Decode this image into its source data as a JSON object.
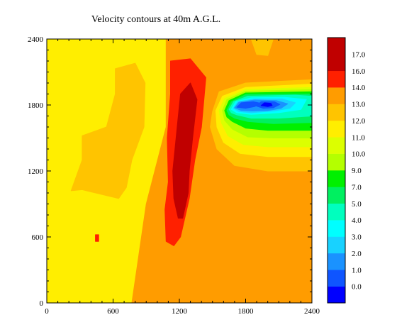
{
  "chart_data": {
    "type": "heatmap",
    "title": "Velocity contours at 40m A.G.L.",
    "xlabel": "",
    "ylabel": "",
    "xlim": [
      0,
      2400
    ],
    "ylim": [
      0,
      2400
    ],
    "x_ticks": [
      "0",
      "600",
      "1200",
      "1800",
      "2400"
    ],
    "y_ticks": [
      "0",
      "600",
      "1200",
      "1800",
      "2400"
    ],
    "colorbar": {
      "levels": [
        "0.0",
        "1.0",
        "2.0",
        "3.0",
        "4.0",
        "5.0",
        "7.0",
        "9.0",
        "10.0",
        "11.0",
        "12.0",
        "13.0",
        "14.0",
        "16.0",
        "17.0"
      ],
      "colors": [
        "#0000ff",
        "#0f55ff",
        "#1a92ff",
        "#18d2ff",
        "#00ffff",
        "#00ffbe",
        "#00f060",
        "#00f000",
        "#b4ff00",
        "#dcff00",
        "#ffee00",
        "#ffc400",
        "#ff9c00",
        "#ff2000",
        "#c00000",
        "#c00000"
      ]
    },
    "regions": [
      {
        "level": "12.0",
        "points": [
          [
            0,
            2400
          ],
          [
            1080,
            2400
          ],
          [
            1080,
            1600
          ],
          [
            900,
            900
          ],
          [
            770,
            0
          ],
          [
            0,
            0
          ]
        ]
      },
      {
        "level": "14.0",
        "points": [
          [
            1080,
            2400
          ],
          [
            2400,
            2400
          ],
          [
            2400,
            0
          ],
          [
            770,
            0
          ],
          [
            900,
            900
          ],
          [
            1080,
            1600
          ]
        ]
      },
      {
        "level": "13.0",
        "points": [
          [
            620,
            2130
          ],
          [
            800,
            2180
          ],
          [
            890,
            2000
          ],
          [
            880,
            1600
          ],
          [
            770,
            1300
          ],
          [
            720,
            1050
          ],
          [
            650,
            950
          ],
          [
            320,
            1030
          ],
          [
            220,
            1020
          ],
          [
            320,
            1300
          ],
          [
            320,
            1520
          ],
          [
            540,
            1600
          ],
          [
            620,
            1900
          ]
        ]
      },
      {
        "level": "13.0",
        "points": [
          [
            1850,
            2400
          ],
          [
            2050,
            2400
          ],
          [
            2000,
            2250
          ],
          [
            1900,
            2260
          ]
        ]
      },
      {
        "level": "16.0",
        "points": [
          [
            1120,
            2200
          ],
          [
            1300,
            2220
          ],
          [
            1440,
            2050
          ],
          [
            1400,
            1600
          ],
          [
            1340,
            1300
          ],
          [
            1290,
            950
          ],
          [
            1210,
            600
          ],
          [
            1150,
            520
          ],
          [
            1080,
            560
          ],
          [
            1070,
            850
          ],
          [
            1100,
            1100
          ],
          [
            1090,
            1500
          ],
          [
            1120,
            1900
          ]
        ]
      },
      {
        "level": "17.0",
        "points": [
          [
            1300,
            2000
          ],
          [
            1360,
            1850
          ],
          [
            1320,
            1500
          ],
          [
            1290,
            1200
          ],
          [
            1280,
            1000
          ],
          [
            1230,
            770
          ],
          [
            1190,
            770
          ],
          [
            1150,
            950
          ],
          [
            1140,
            1200
          ],
          [
            1180,
            1600
          ],
          [
            1210,
            1900
          ]
        ]
      },
      {
        "level": "16.0",
        "points": [
          [
            440,
            620
          ],
          [
            470,
            620
          ],
          [
            470,
            560
          ],
          [
            440,
            560
          ]
        ]
      },
      {
        "level": "13.0",
        "points": [
          [
            1500,
            1740
          ],
          [
            1560,
            1920
          ],
          [
            1800,
            2000
          ],
          [
            2400,
            2030
          ],
          [
            2400,
            1200
          ],
          [
            2000,
            1200
          ],
          [
            1700,
            1250
          ],
          [
            1540,
            1400
          ],
          [
            1480,
            1600
          ]
        ]
      },
      {
        "level": "12.0",
        "points": [
          [
            1530,
            1750
          ],
          [
            1590,
            1880
          ],
          [
            1800,
            1960
          ],
          [
            2400,
            1990
          ],
          [
            2400,
            1330
          ],
          [
            2000,
            1330
          ],
          [
            1750,
            1360
          ],
          [
            1600,
            1460
          ],
          [
            1540,
            1600
          ]
        ]
      },
      {
        "level": "11.0",
        "points": [
          [
            1560,
            1750
          ],
          [
            1610,
            1860
          ],
          [
            1800,
            1940
          ],
          [
            2400,
            1960
          ],
          [
            2400,
            1420
          ],
          [
            2000,
            1420
          ],
          [
            1780,
            1440
          ],
          [
            1640,
            1520
          ],
          [
            1580,
            1640
          ]
        ]
      },
      {
        "level": "10.0",
        "points": [
          [
            1590,
            1750
          ],
          [
            1630,
            1850
          ],
          [
            1800,
            1925
          ],
          [
            2400,
            1940
          ],
          [
            2400,
            1500
          ],
          [
            2050,
            1500
          ],
          [
            1820,
            1510
          ],
          [
            1680,
            1580
          ],
          [
            1610,
            1660
          ]
        ]
      },
      {
        "level": "9.0",
        "points": [
          [
            1610,
            1750
          ],
          [
            1650,
            1840
          ],
          [
            1800,
            1910
          ],
          [
            2400,
            1920
          ],
          [
            2400,
            1570
          ],
          [
            2000,
            1570
          ],
          [
            1800,
            1590
          ],
          [
            1680,
            1650
          ],
          [
            1630,
            1690
          ]
        ]
      },
      {
        "level": "7.0",
        "points": [
          [
            1630,
            1750
          ],
          [
            1670,
            1830
          ],
          [
            1800,
            1895
          ],
          [
            2400,
            1900
          ],
          [
            2400,
            1640
          ],
          [
            2050,
            1630
          ],
          [
            1820,
            1650
          ],
          [
            1700,
            1680
          ],
          [
            1650,
            1710
          ]
        ]
      },
      {
        "level": "5.0",
        "points": [
          [
            1650,
            1760
          ],
          [
            1690,
            1830
          ],
          [
            1820,
            1880
          ],
          [
            2250,
            1890
          ],
          [
            2400,
            1880
          ],
          [
            2400,
            1700
          ],
          [
            2100,
            1680
          ],
          [
            1850,
            1680
          ],
          [
            1720,
            1710
          ],
          [
            1670,
            1730
          ]
        ]
      },
      {
        "level": "4.0",
        "points": [
          [
            1670,
            1760
          ],
          [
            1710,
            1830
          ],
          [
            1850,
            1865
          ],
          [
            2150,
            1870
          ],
          [
            2350,
            1850
          ],
          [
            2300,
            1760
          ],
          [
            2100,
            1730
          ],
          [
            1850,
            1715
          ],
          [
            1720,
            1730
          ]
        ]
      },
      {
        "level": "3.0",
        "points": [
          [
            1690,
            1770
          ],
          [
            1730,
            1830
          ],
          [
            1880,
            1855
          ],
          [
            2130,
            1855
          ],
          [
            2250,
            1820
          ],
          [
            2200,
            1770
          ],
          [
            2050,
            1745
          ],
          [
            1850,
            1730
          ],
          [
            1740,
            1740
          ]
        ]
      },
      {
        "level": "2.0",
        "points": [
          [
            1700,
            1775
          ],
          [
            1740,
            1825
          ],
          [
            1880,
            1845
          ],
          [
            2080,
            1840
          ],
          [
            2180,
            1810
          ],
          [
            2120,
            1770
          ],
          [
            2000,
            1750
          ],
          [
            1860,
            1745
          ],
          [
            1760,
            1750
          ]
        ]
      },
      {
        "level": "1.0",
        "points": [
          [
            1720,
            1780
          ],
          [
            1760,
            1820
          ],
          [
            1870,
            1830
          ],
          [
            1940,
            1815
          ],
          [
            1880,
            1785
          ],
          [
            1800,
            1770
          ]
        ]
      },
      {
        "level": "1.0",
        "points": [
          [
            1900,
            1790
          ],
          [
            1940,
            1830
          ],
          [
            2060,
            1830
          ],
          [
            2110,
            1805
          ],
          [
            2050,
            1775
          ],
          [
            1960,
            1770
          ]
        ]
      },
      {
        "level": "0.0",
        "points": [
          [
            1940,
            1795
          ],
          [
            1970,
            1820
          ],
          [
            2030,
            1815
          ],
          [
            2040,
            1795
          ],
          [
            2000,
            1785
          ]
        ]
      }
    ]
  }
}
